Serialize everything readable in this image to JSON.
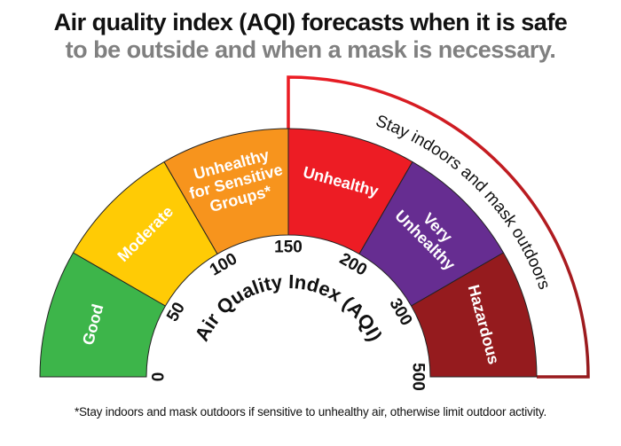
{
  "title_line1": "Air quality index (AQI) forecasts when it is safe",
  "title_line2": "to be outside and when a mask is necessary.",
  "gauge_title": "Air Quality Index (AQI)",
  "bracket_label": "Stay indoors and mask outdoors",
  "bracket_colors": [
    "#ed1c24",
    "#951b1e"
  ],
  "categories": [
    {
      "lines": [
        "Good"
      ],
      "color": "#3db54a"
    },
    {
      "lines": [
        "Moderate"
      ],
      "color": "#ffcb05"
    },
    {
      "lines": [
        "Unhealthy",
        "for Sensitive",
        "Groups*"
      ],
      "color": "#f7941d"
    },
    {
      "lines": [
        "Unhealthy"
      ],
      "color": "#ed1c24"
    },
    {
      "lines": [
        "Very",
        "Unhealthy"
      ],
      "color": "#662d91"
    },
    {
      "lines": [
        "Hazardous"
      ],
      "color": "#951b1e"
    }
  ],
  "ticks": [
    "0",
    "50",
    "100",
    "150",
    "200",
    "300",
    "500"
  ],
  "footnote": "*Stay indoors and mask outdoors if sensitive to unhealthy air, otherwise limit outdoor activity."
}
